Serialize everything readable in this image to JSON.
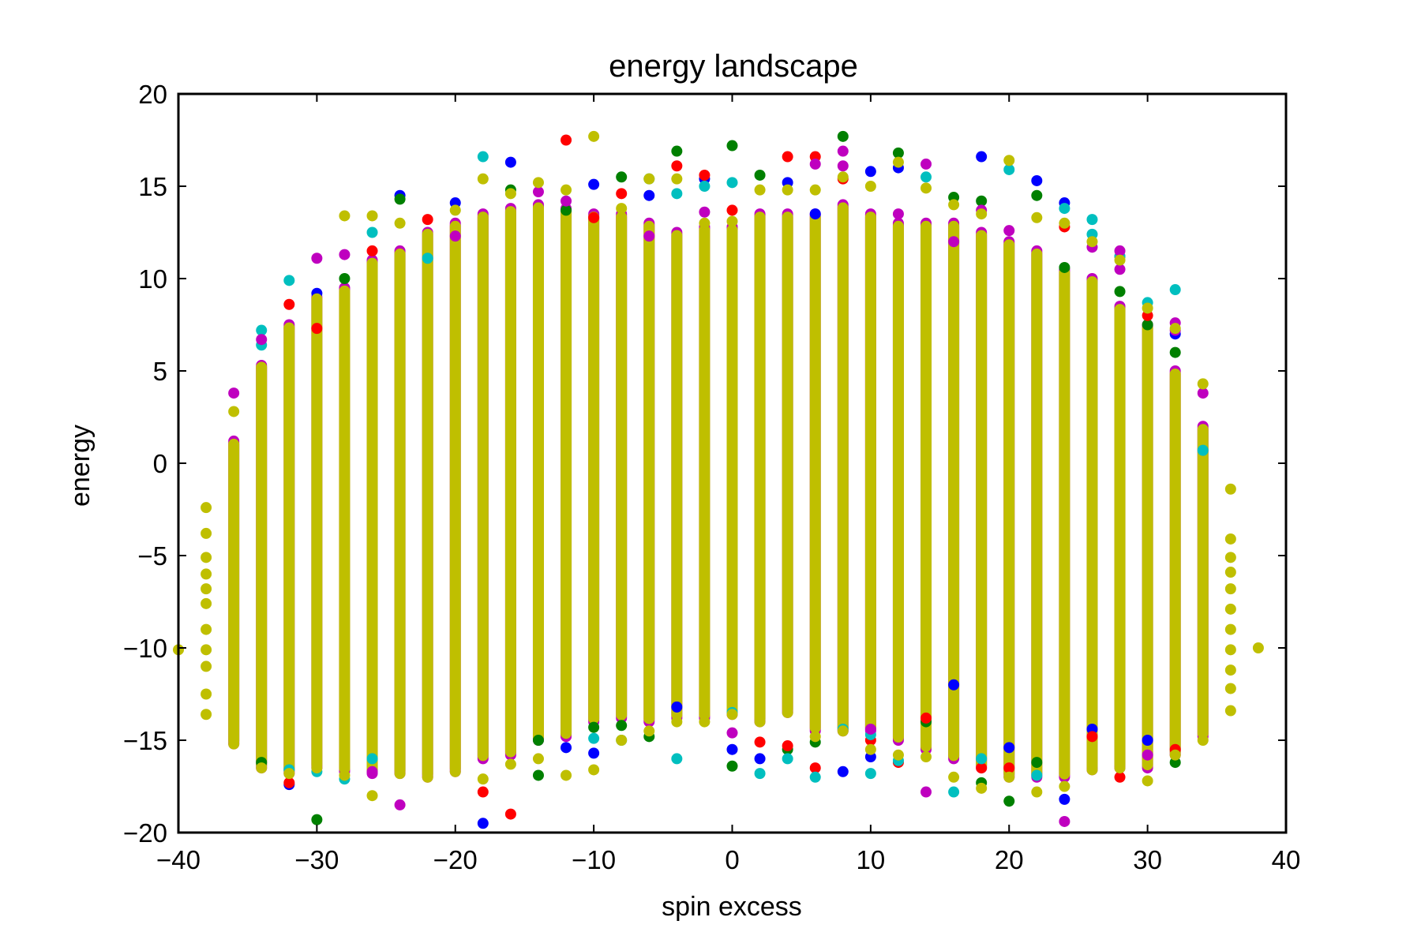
{
  "chart_data": {
    "type": "scatter",
    "title": "energy landscape",
    "xlabel": "spin excess",
    "ylabel": "energy",
    "xlim": [
      -40,
      40
    ],
    "ylim": [
      -20,
      20
    ],
    "xticks": [
      -40,
      -30,
      -20,
      -10,
      0,
      10,
      20,
      30,
      40
    ],
    "xtick_labels": [
      "−40",
      "−30",
      "−20",
      "−10",
      "0",
      "10",
      "20",
      "30",
      "40"
    ],
    "yticks": [
      -20,
      -15,
      -10,
      -5,
      0,
      5,
      10,
      15,
      20
    ],
    "ytick_labels": [
      "−20",
      "−15",
      "−10",
      "−5",
      "0",
      "5",
      "10",
      "15",
      "20"
    ],
    "grid": false,
    "marker": "circle",
    "series": [
      {
        "color": "#0000ff",
        "points": [
          [
            -32,
            -17.4
          ],
          [
            -30,
            9.2
          ],
          [
            -24,
            14.5
          ],
          [
            -20,
            14.1
          ],
          [
            -18,
            -19.5
          ],
          [
            -16,
            16.3
          ],
          [
            -12,
            -15.4
          ],
          [
            -10,
            15.1
          ],
          [
            -10,
            -15.7
          ],
          [
            -6,
            14.5
          ],
          [
            -4,
            -13.2
          ],
          [
            -2,
            15.4
          ],
          [
            0,
            -15.5
          ],
          [
            2,
            -16.0
          ],
          [
            4,
            15.2
          ],
          [
            6,
            13.5
          ],
          [
            8,
            -16.7
          ],
          [
            10,
            15.8
          ],
          [
            10,
            -15.9
          ],
          [
            12,
            16.0
          ],
          [
            16,
            -12.0
          ],
          [
            18,
            16.6
          ],
          [
            20,
            -15.4
          ],
          [
            22,
            15.3
          ],
          [
            24,
            14.1
          ],
          [
            24,
            -18.2
          ],
          [
            26,
            -14.4
          ],
          [
            30,
            -15.0
          ],
          [
            32,
            7.0
          ]
        ]
      },
      {
        "color": "#008000",
        "points": [
          [
            -34,
            -16.2
          ],
          [
            -30,
            -19.3
          ],
          [
            -28,
            10.0
          ],
          [
            -24,
            14.3
          ],
          [
            -16,
            14.8
          ],
          [
            -14,
            -16.9
          ],
          [
            -14,
            -15.0
          ],
          [
            -12,
            13.7
          ],
          [
            -10,
            -14.3
          ],
          [
            -8,
            15.5
          ],
          [
            -8,
            -14.2
          ],
          [
            -6,
            -14.8
          ],
          [
            -4,
            16.9
          ],
          [
            0,
            17.2
          ],
          [
            0,
            -16.4
          ],
          [
            2,
            15.6
          ],
          [
            4,
            -15.5
          ],
          [
            6,
            -15.1
          ],
          [
            8,
            17.7
          ],
          [
            12,
            16.8
          ],
          [
            14,
            -14.0
          ],
          [
            16,
            14.4
          ],
          [
            18,
            14.2
          ],
          [
            18,
            -17.3
          ],
          [
            20,
            -18.3
          ],
          [
            22,
            14.5
          ],
          [
            22,
            -16.2
          ],
          [
            24,
            10.6
          ],
          [
            28,
            9.3
          ],
          [
            30,
            7.5
          ],
          [
            32,
            6.0
          ],
          [
            32,
            -16.2
          ]
        ]
      },
      {
        "color": "#ff0000",
        "points": [
          [
            -32,
            8.6
          ],
          [
            -32,
            -17.3
          ],
          [
            -30,
            7.3
          ],
          [
            -26,
            11.5
          ],
          [
            -22,
            13.2
          ],
          [
            -18,
            -17.8
          ],
          [
            -16,
            -19.0
          ],
          [
            -12,
            17.5
          ],
          [
            -10,
            13.3
          ],
          [
            -8,
            14.6
          ],
          [
            -4,
            16.1
          ],
          [
            -2,
            15.6
          ],
          [
            0,
            13.7
          ],
          [
            2,
            -15.1
          ],
          [
            4,
            16.6
          ],
          [
            4,
            -15.3
          ],
          [
            6,
            16.6
          ],
          [
            6,
            -16.5
          ],
          [
            8,
            15.4
          ],
          [
            10,
            -15.0
          ],
          [
            12,
            -16.2
          ],
          [
            14,
            -13.8
          ],
          [
            18,
            -16.5
          ],
          [
            20,
            -16.5
          ],
          [
            24,
            12.8
          ],
          [
            26,
            -14.8
          ],
          [
            28,
            11.2
          ],
          [
            28,
            -17.0
          ],
          [
            30,
            8.0
          ],
          [
            32,
            -15.5
          ]
        ]
      },
      {
        "color": "#00bfbf",
        "points": [
          [
            -34,
            7.2
          ],
          [
            -34,
            6.4
          ],
          [
            -32,
            9.9
          ],
          [
            -32,
            -16.6
          ],
          [
            -30,
            -16.7
          ],
          [
            -28,
            -17.1
          ],
          [
            -26,
            12.5
          ],
          [
            -26,
            -16.0
          ],
          [
            -22,
            11.1
          ],
          [
            -18,
            16.6
          ],
          [
            -10,
            -14.9
          ],
          [
            -8,
            -15.0
          ],
          [
            -6,
            15.4
          ],
          [
            -4,
            14.6
          ],
          [
            -4,
            -16.0
          ],
          [
            -2,
            15.0
          ],
          [
            0,
            15.2
          ],
          [
            0,
            -13.5
          ],
          [
            2,
            -16.8
          ],
          [
            4,
            -16.0
          ],
          [
            6,
            -17.0
          ],
          [
            8,
            -14.4
          ],
          [
            10,
            -14.7
          ],
          [
            10,
            -16.8
          ],
          [
            12,
            -16.1
          ],
          [
            14,
            15.5
          ],
          [
            16,
            -17.8
          ],
          [
            18,
            -16.0
          ],
          [
            20,
            15.9
          ],
          [
            22,
            -16.9
          ],
          [
            24,
            13.8
          ],
          [
            26,
            13.2
          ],
          [
            26,
            12.4
          ],
          [
            28,
            11.2
          ],
          [
            30,
            8.7
          ],
          [
            32,
            9.4
          ],
          [
            34,
            0.7
          ]
        ]
      },
      {
        "color": "#bf00bf",
        "points": [
          [
            -36,
            3.8
          ],
          [
            -34,
            6.7
          ],
          [
            -30,
            11.1
          ],
          [
            -28,
            11.3
          ],
          [
            -26,
            -16.7
          ],
          [
            -24,
            -18.5
          ],
          [
            -20,
            12.3
          ],
          [
            -14,
            14.7
          ],
          [
            -12,
            14.2
          ],
          [
            -6,
            12.3
          ],
          [
            -2,
            13.6
          ],
          [
            0,
            -14.6
          ],
          [
            6,
            16.2
          ],
          [
            8,
            16.9
          ],
          [
            8,
            16.1
          ],
          [
            10,
            -14.4
          ],
          [
            12,
            13.5
          ],
          [
            14,
            16.2
          ],
          [
            14,
            -17.8
          ],
          [
            16,
            12.0
          ],
          [
            18,
            13.7
          ],
          [
            20,
            12.6
          ],
          [
            24,
            -19.4
          ],
          [
            26,
            11.7
          ],
          [
            28,
            11.5
          ],
          [
            28,
            10.5
          ],
          [
            30,
            -15.8
          ],
          [
            32,
            7.6
          ],
          [
            32,
            7.2
          ],
          [
            34,
            3.8
          ]
        ]
      },
      {
        "color": "#bfbf00",
        "points": [
          [
            -40,
            -10.1
          ],
          [
            -38,
            -2.4
          ],
          [
            -38,
            -3.8
          ],
          [
            -38,
            -5.1
          ],
          [
            -38,
            -6.0
          ],
          [
            -38,
            -6.8
          ],
          [
            -38,
            -7.6
          ],
          [
            -38,
            -9.0
          ],
          [
            -38,
            -10.1
          ],
          [
            -38,
            -11.0
          ],
          [
            -38,
            -12.5
          ],
          [
            -38,
            -13.6
          ],
          [
            -36,
            2.8
          ],
          [
            -36,
            -15.2
          ],
          [
            -34,
            5.2
          ],
          [
            -34,
            -16.5
          ],
          [
            -32,
            7.3
          ],
          [
            -32,
            -16.8
          ],
          [
            -30,
            8.9
          ],
          [
            -30,
            -16.5
          ],
          [
            -28,
            13.4
          ],
          [
            -28,
            -16.9
          ],
          [
            -26,
            13.4
          ],
          [
            -26,
            -18.0
          ],
          [
            -24,
            13.0
          ],
          [
            -24,
            -16.8
          ],
          [
            -22,
            12.4
          ],
          [
            -22,
            -17.0
          ],
          [
            -20,
            13.7
          ],
          [
            -20,
            -16.7
          ],
          [
            -18,
            15.4
          ],
          [
            -18,
            -17.1
          ],
          [
            -16,
            14.6
          ],
          [
            -16,
            -16.3
          ],
          [
            -14,
            15.2
          ],
          [
            -14,
            -16.0
          ],
          [
            -12,
            14.8
          ],
          [
            -12,
            -16.9
          ],
          [
            -10,
            17.7
          ],
          [
            -10,
            -16.6
          ],
          [
            -8,
            13.8
          ],
          [
            -8,
            -15.0
          ],
          [
            -6,
            15.4
          ],
          [
            -6,
            -14.5
          ],
          [
            -4,
            15.4
          ],
          [
            -4,
            -14.0
          ],
          [
            -2,
            13.0
          ],
          [
            -2,
            -14.0
          ],
          [
            0,
            13.1
          ],
          [
            0,
            -13.6
          ],
          [
            2,
            14.8
          ],
          [
            2,
            -14.0
          ],
          [
            4,
            14.8
          ],
          [
            4,
            -13.5
          ],
          [
            6,
            14.8
          ],
          [
            6,
            -14.8
          ],
          [
            8,
            15.5
          ],
          [
            8,
            -14.5
          ],
          [
            10,
            15.0
          ],
          [
            10,
            -15.5
          ],
          [
            12,
            16.3
          ],
          [
            12,
            -15.8
          ],
          [
            14,
            14.9
          ],
          [
            14,
            -15.9
          ],
          [
            16,
            14.0
          ],
          [
            16,
            -17.0
          ],
          [
            18,
            13.5
          ],
          [
            18,
            -17.6
          ],
          [
            20,
            16.4
          ],
          [
            20,
            -17.0
          ],
          [
            22,
            13.3
          ],
          [
            22,
            -17.8
          ],
          [
            24,
            13.0
          ],
          [
            24,
            -17.5
          ],
          [
            26,
            12.0
          ],
          [
            26,
            -16.6
          ],
          [
            28,
            11.0
          ],
          [
            28,
            -16.5
          ],
          [
            30,
            8.4
          ],
          [
            30,
            -17.2
          ],
          [
            32,
            7.3
          ],
          [
            32,
            -15.8
          ],
          [
            34,
            4.3
          ],
          [
            34,
            -15.0
          ],
          [
            36,
            -1.4
          ],
          [
            36,
            -4.1
          ],
          [
            36,
            -5.1
          ],
          [
            36,
            -5.9
          ],
          [
            36,
            -6.8
          ],
          [
            36,
            -7.9
          ],
          [
            36,
            -9.0
          ],
          [
            36,
            -10.1
          ],
          [
            36,
            -11.2
          ],
          [
            36,
            -12.2
          ],
          [
            36,
            -13.4
          ],
          [
            38,
            -10.0
          ]
        ]
      }
    ],
    "columns": [
      {
        "x": -38,
        "lo": -13.6,
        "hi": -2.4,
        "dense": false
      },
      {
        "x": -36,
        "lo": -15.2,
        "hi": 1.2,
        "dense": true
      },
      {
        "x": -34,
        "lo": -16.5,
        "hi": 5.3,
        "dense": true
      },
      {
        "x": -32,
        "lo": -16.8,
        "hi": 7.5,
        "dense": true
      },
      {
        "x": -30,
        "lo": -16.5,
        "hi": 9.0,
        "dense": true
      },
      {
        "x": -28,
        "lo": -16.7,
        "hi": 9.5,
        "dense": true
      },
      {
        "x": -26,
        "lo": -16.8,
        "hi": 11.0,
        "dense": true
      },
      {
        "x": -24,
        "lo": -16.8,
        "hi": 11.5,
        "dense": true
      },
      {
        "x": -22,
        "lo": -17.0,
        "hi": 12.5,
        "dense": true
      },
      {
        "x": -20,
        "lo": -16.7,
        "hi": 13.0,
        "dense": true
      },
      {
        "x": -18,
        "lo": -16.0,
        "hi": 13.5,
        "dense": true
      },
      {
        "x": -16,
        "lo": -15.8,
        "hi": 13.8,
        "dense": true
      },
      {
        "x": -14,
        "lo": -15.0,
        "hi": 14.0,
        "dense": true
      },
      {
        "x": -12,
        "lo": -14.8,
        "hi": 13.8,
        "dense": true
      },
      {
        "x": -10,
        "lo": -14.0,
        "hi": 13.5,
        "dense": true
      },
      {
        "x": -8,
        "lo": -13.8,
        "hi": 13.5,
        "dense": true
      },
      {
        "x": -6,
        "lo": -14.0,
        "hi": 13.0,
        "dense": true
      },
      {
        "x": -4,
        "lo": -13.8,
        "hi": 12.5,
        "dense": true
      },
      {
        "x": -2,
        "lo": -13.8,
        "hi": 12.8,
        "dense": true
      },
      {
        "x": 0,
        "lo": -13.6,
        "hi": 12.8,
        "dense": true
      },
      {
        "x": 2,
        "lo": -14.0,
        "hi": 13.5,
        "dense": true
      },
      {
        "x": 4,
        "lo": -13.5,
        "hi": 13.5,
        "dense": true
      },
      {
        "x": 6,
        "lo": -14.5,
        "hi": 13.5,
        "dense": true
      },
      {
        "x": 8,
        "lo": -14.5,
        "hi": 14.0,
        "dense": true
      },
      {
        "x": 10,
        "lo": -14.5,
        "hi": 13.5,
        "dense": true
      },
      {
        "x": 12,
        "lo": -15.0,
        "hi": 13.0,
        "dense": true
      },
      {
        "x": 14,
        "lo": -15.5,
        "hi": 13.0,
        "dense": true
      },
      {
        "x": 16,
        "lo": -16.0,
        "hi": 13.0,
        "dense": true
      },
      {
        "x": 18,
        "lo": -16.5,
        "hi": 12.5,
        "dense": true
      },
      {
        "x": 20,
        "lo": -17.0,
        "hi": 12.0,
        "dense": true
      },
      {
        "x": 22,
        "lo": -17.0,
        "hi": 11.5,
        "dense": true
      },
      {
        "x": 24,
        "lo": -17.0,
        "hi": 10.5,
        "dense": true
      },
      {
        "x": 26,
        "lo": -16.6,
        "hi": 10.0,
        "dense": true
      },
      {
        "x": 28,
        "lo": -16.5,
        "hi": 8.5,
        "dense": true
      },
      {
        "x": 30,
        "lo": -16.5,
        "hi": 7.5,
        "dense": true
      },
      {
        "x": 32,
        "lo": -15.8,
        "hi": 5.0,
        "dense": true
      },
      {
        "x": 34,
        "lo": -14.8,
        "hi": 2.0,
        "dense": true
      },
      {
        "x": 36,
        "lo": -13.4,
        "hi": -1.4,
        "dense": false
      }
    ],
    "column_colors": [
      "#bf00bf",
      "#bfbf00"
    ]
  }
}
